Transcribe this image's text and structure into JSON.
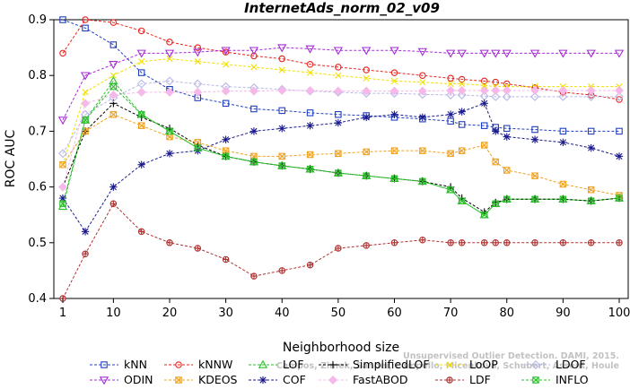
{
  "chart_data": {
    "type": "line",
    "title": "InternetAds_norm_02_v09",
    "xlabel": "Neighborhood size",
    "ylabel": "ROC AUC",
    "xlim": [
      1,
      100
    ],
    "ylim": [
      0.4,
      0.9
    ],
    "x_ticks": [
      1,
      10,
      20,
      30,
      40,
      50,
      60,
      70,
      80,
      90,
      100
    ],
    "y_ticks": [
      0.4,
      0.5,
      0.6,
      0.7,
      0.8,
      0.9
    ],
    "grid": false,
    "legend_position": "bottom",
    "x": [
      1,
      5,
      10,
      15,
      20,
      25,
      30,
      35,
      40,
      45,
      50,
      55,
      60,
      65,
      70,
      72,
      76,
      78,
      80,
      85,
      90,
      95,
      100
    ],
    "series": [
      {
        "name": "kNN",
        "color": "#1f3fbf",
        "marker": "square",
        "values": [
          0.9,
          0.885,
          0.855,
          0.805,
          0.775,
          0.76,
          0.75,
          0.74,
          0.737,
          0.733,
          0.73,
          0.728,
          0.725,
          0.722,
          0.718,
          0.712,
          0.71,
          0.707,
          0.705,
          0.703,
          0.7,
          0.7,
          0.7
        ]
      },
      {
        "name": "kNNW",
        "color": "#e8231f",
        "marker": "circle",
        "values": [
          0.84,
          0.9,
          0.895,
          0.88,
          0.86,
          0.85,
          0.842,
          0.835,
          0.83,
          0.82,
          0.815,
          0.81,
          0.805,
          0.8,
          0.795,
          0.793,
          0.79,
          0.788,
          0.785,
          0.778,
          0.77,
          0.765,
          0.757
        ]
      },
      {
        "name": "LOF",
        "color": "#2bbf2b",
        "marker": "triangle-up",
        "values": [
          0.565,
          0.72,
          0.79,
          0.73,
          0.7,
          0.67,
          0.655,
          0.645,
          0.638,
          0.632,
          0.625,
          0.62,
          0.615,
          0.61,
          0.595,
          0.575,
          0.55,
          0.57,
          0.578,
          0.578,
          0.578,
          0.575,
          0.58
        ]
      },
      {
        "name": "SimplifiedLOF",
        "color": "#000000",
        "marker": "plus",
        "values": [
          0.6,
          0.7,
          0.75,
          0.725,
          0.705,
          0.675,
          0.655,
          0.645,
          0.638,
          0.632,
          0.625,
          0.62,
          0.615,
          0.61,
          0.6,
          0.58,
          0.555,
          0.572,
          0.578,
          0.578,
          0.578,
          0.575,
          0.58
        ]
      },
      {
        "name": "LoOP",
        "color": "#f0e000",
        "marker": "x",
        "values": [
          0.64,
          0.77,
          0.8,
          0.825,
          0.83,
          0.825,
          0.82,
          0.815,
          0.81,
          0.805,
          0.8,
          0.795,
          0.79,
          0.788,
          0.785,
          0.785,
          0.782,
          0.78,
          0.78,
          0.78,
          0.78,
          0.78,
          0.78
        ]
      },
      {
        "name": "LDOF",
        "color": "#b8b8e8",
        "marker": "diamond",
        "values": [
          0.66,
          0.73,
          0.76,
          0.785,
          0.79,
          0.785,
          0.78,
          0.778,
          0.775,
          0.772,
          0.77,
          0.768,
          0.768,
          0.766,
          0.765,
          0.765,
          0.763,
          0.762,
          0.762,
          0.762,
          0.762,
          0.762,
          0.762
        ]
      },
      {
        "name": "ODIN",
        "color": "#a52bd6",
        "marker": "triangle-down",
        "values": [
          0.72,
          0.8,
          0.82,
          0.84,
          0.84,
          0.842,
          0.845,
          0.845,
          0.85,
          0.848,
          0.845,
          0.845,
          0.845,
          0.843,
          0.84,
          0.84,
          0.84,
          0.84,
          0.84,
          0.84,
          0.84,
          0.84,
          0.84
        ]
      },
      {
        "name": "KDEOS",
        "color": "#f0a21f",
        "marker": "box-x",
        "values": [
          0.64,
          0.7,
          0.73,
          0.71,
          0.69,
          0.68,
          0.665,
          0.655,
          0.655,
          0.658,
          0.66,
          0.663,
          0.665,
          0.665,
          0.66,
          0.665,
          0.675,
          0.645,
          0.63,
          0.62,
          0.605,
          0.595,
          0.585
        ]
      },
      {
        "name": "COF",
        "color": "#1a1a8c",
        "marker": "asterisk",
        "values": [
          0.58,
          0.52,
          0.6,
          0.64,
          0.66,
          0.665,
          0.685,
          0.7,
          0.705,
          0.71,
          0.715,
          0.725,
          0.73,
          0.725,
          0.73,
          0.735,
          0.75,
          0.7,
          0.69,
          0.685,
          0.68,
          0.67,
          0.655
        ]
      },
      {
        "name": "FastABOD",
        "color": "#f5b8e8",
        "marker": "diamond-filled",
        "values": [
          0.6,
          0.75,
          0.765,
          0.77,
          0.77,
          0.77,
          0.772,
          0.772,
          0.773,
          0.773,
          0.772,
          0.772,
          0.772,
          0.772,
          0.773,
          0.773,
          0.773,
          0.773,
          0.773,
          0.773,
          0.773,
          0.773,
          0.773
        ]
      },
      {
        "name": "LDF",
        "color": "#b03030",
        "marker": "circle-plus",
        "values": [
          0.4,
          0.48,
          0.57,
          0.52,
          0.5,
          0.49,
          0.47,
          0.44,
          0.45,
          0.46,
          0.49,
          0.495,
          0.5,
          0.505,
          0.5,
          0.5,
          0.5,
          0.5,
          0.5,
          0.5,
          0.5,
          0.5,
          0.5
        ]
      },
      {
        "name": "INFLO",
        "color": "#2bbf2b",
        "marker": "box-x",
        "values": [
          0.57,
          0.72,
          0.78,
          0.73,
          0.7,
          0.67,
          0.655,
          0.645,
          0.638,
          0.632,
          0.625,
          0.62,
          0.615,
          0.61,
          0.595,
          0.575,
          0.55,
          0.57,
          0.578,
          0.578,
          0.578,
          0.575,
          0.58
        ]
      }
    ],
    "watermark": "Campos, Zimek, Sander, Campello, Micenková, Schubert, Assent, Houle\nUnsupervised Outlier Detection. DAMI, 2015."
  }
}
